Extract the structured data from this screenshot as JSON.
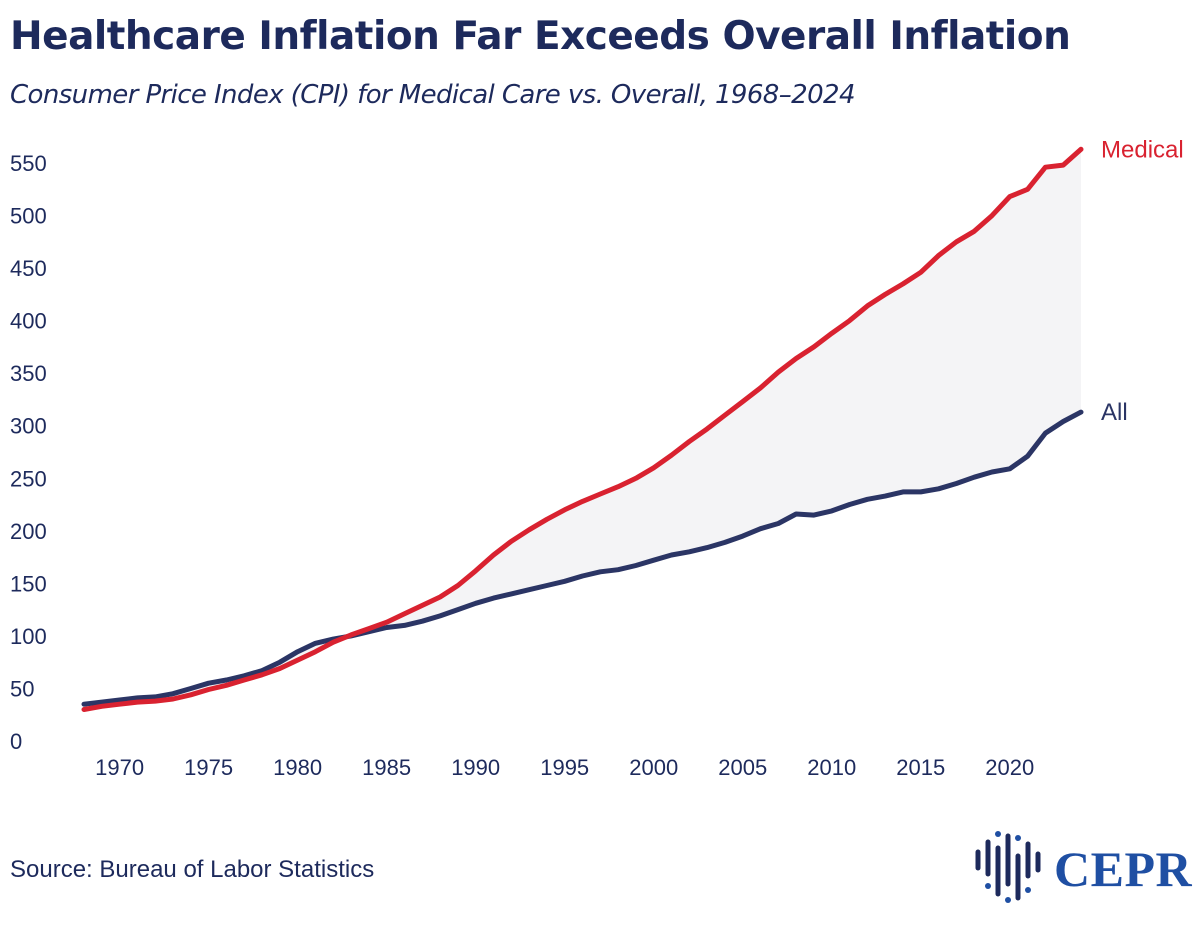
{
  "header": {
    "title": "Healthcare Inflation Far Exceeds Overall Inflation",
    "subtitle": "Consumer Price Index (CPI) for Medical Care vs. Overall, 1968–2024"
  },
  "footer": {
    "source": "Source: Bureau of Labor Statistics",
    "logo_text": "CEPR"
  },
  "colors": {
    "medical": "#d92230",
    "all": "#2b3565",
    "fill": "#f4f4f6",
    "axis_text": "#1d2a5c"
  },
  "chart_data": {
    "type": "line",
    "title": "Healthcare Inflation Far Exceeds Overall Inflation",
    "subtitle": "Consumer Price Index (CPI) for Medical Care vs. Overall, 1968–2024",
    "xlabel": "",
    "ylabel": "",
    "xlim": [
      1968,
      2024
    ],
    "ylim": [
      0,
      570
    ],
    "xticks": [
      1970,
      1975,
      1980,
      1985,
      1990,
      1995,
      2000,
      2005,
      2010,
      2015,
      2020
    ],
    "yticks": [
      0,
      50,
      100,
      150,
      200,
      250,
      300,
      350,
      400,
      450,
      500,
      550
    ],
    "grid": false,
    "fill_between": true,
    "x": [
      1968,
      1969,
      1970,
      1971,
      1972,
      1973,
      1974,
      1975,
      1976,
      1977,
      1978,
      1979,
      1980,
      1981,
      1982,
      1983,
      1984,
      1985,
      1986,
      1987,
      1988,
      1989,
      1990,
      1991,
      1992,
      1993,
      1994,
      1995,
      1996,
      1997,
      1998,
      1999,
      2000,
      2001,
      2002,
      2003,
      2004,
      2005,
      2006,
      2007,
      2008,
      2009,
      2010,
      2011,
      2012,
      2013,
      2014,
      2015,
      2016,
      2017,
      2018,
      2019,
      2020,
      2021,
      2022,
      2023,
      2024
    ],
    "series": [
      {
        "name": "Medical",
        "label": "Medical",
        "values": [
          30,
          33,
          35,
          37,
          38,
          40,
          44,
          49,
          53,
          58,
          63,
          69,
          77,
          85,
          94,
          101,
          107,
          113,
          121,
          129,
          137,
          148,
          162,
          177,
          190,
          201,
          211,
          220,
          228,
          235,
          242,
          250,
          260,
          272,
          285,
          297,
          310,
          323,
          336,
          351,
          364,
          375,
          388,
          400,
          414,
          425,
          435,
          446,
          462,
          475,
          485,
          500,
          518,
          525,
          546,
          548,
          563
        ]
      },
      {
        "name": "All",
        "label": "All",
        "values": [
          35,
          37,
          39,
          41,
          42,
          45,
          50,
          55,
          58,
          62,
          67,
          75,
          85,
          93,
          97,
          100,
          104,
          108,
          110,
          114,
          119,
          125,
          131,
          136,
          140,
          144,
          148,
          152,
          157,
          161,
          163,
          167,
          172,
          177,
          180,
          184,
          189,
          195,
          202,
          207,
          216,
          215,
          219,
          225,
          230,
          233,
          237,
          237,
          240,
          245,
          251,
          256,
          259,
          271,
          293,
          304,
          313
        ]
      }
    ]
  }
}
